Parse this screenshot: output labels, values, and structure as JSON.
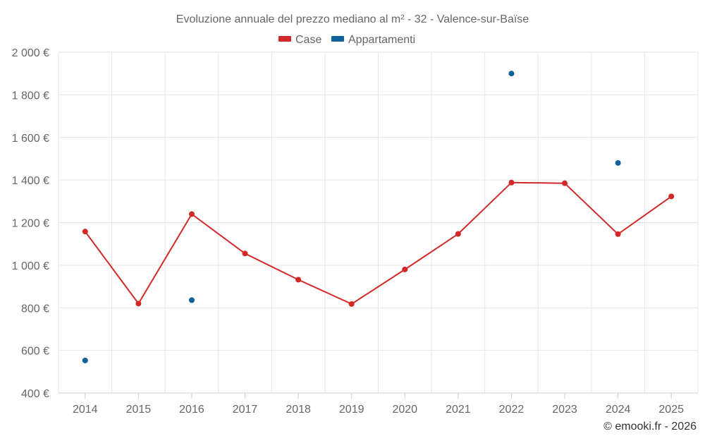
{
  "chart_data": {
    "type": "line",
    "title": "Evoluzione annuale del prezzo mediano al m² - 32 - Valence-sur-Baïse",
    "categories": [
      "2014",
      "2015",
      "2016",
      "2017",
      "2018",
      "2019",
      "2020",
      "2021",
      "2022",
      "2023",
      "2024",
      "2025"
    ],
    "series": [
      {
        "name": "Case",
        "color": "#d22828",
        "values": [
          1158,
          820,
          1240,
          1055,
          932,
          818,
          980,
          1147,
          1388,
          1385,
          1146,
          1323
        ],
        "mode": "line+markers"
      },
      {
        "name": "Appartamenti",
        "color": "#0f609b",
        "values": [
          553,
          null,
          836,
          null,
          null,
          null,
          null,
          null,
          1900,
          null,
          1480,
          null
        ],
        "mode": "markers"
      }
    ],
    "ylim": [
      400,
      2000
    ],
    "yticks": [
      400,
      600,
      800,
      1000,
      1200,
      1400,
      1600,
      1800,
      2000
    ],
    "ytick_labels": [
      "400 €",
      "600 €",
      "800 €",
      "1 000 €",
      "1 200 €",
      "1 400 €",
      "1 600 €",
      "1 800 €",
      "2 000 €"
    ],
    "xlabel": "",
    "ylabel": "",
    "grid": true,
    "legend_position": "top-center"
  },
  "credit": "© emooki.fr - 2026"
}
